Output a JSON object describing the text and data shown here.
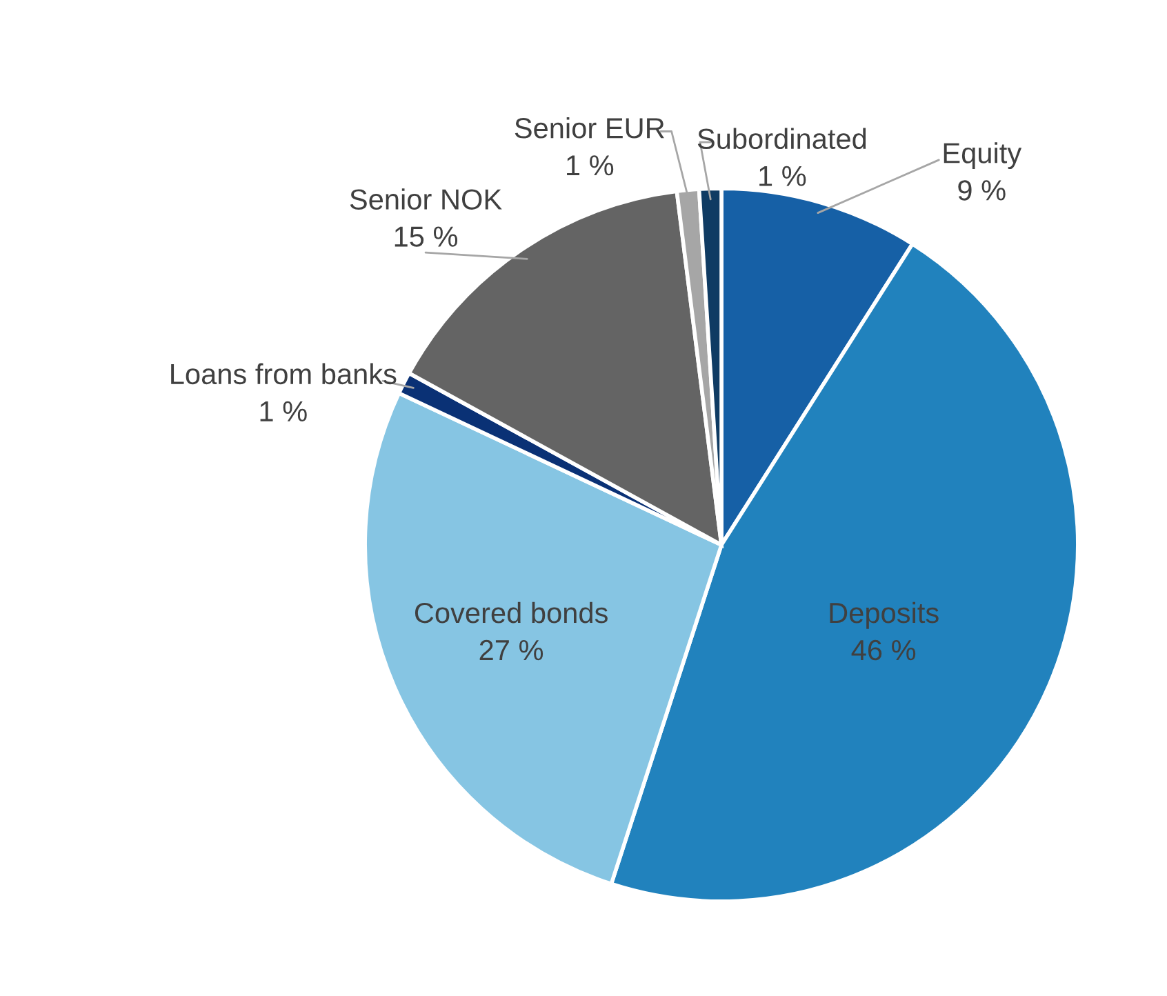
{
  "chart_data": {
    "type": "pie",
    "categories": [
      "Equity",
      "Deposits",
      "Covered bonds",
      "Loans from banks",
      "Senior NOK",
      "Senior EUR",
      "Subordinated"
    ],
    "values": [
      9,
      46,
      27,
      1,
      15,
      1,
      1
    ],
    "value_labels": [
      "9 %",
      "46 %",
      "27 %",
      "1 %",
      "15 %",
      "1 %",
      "1 %"
    ],
    "colors": [
      "#1660a6",
      "#2182bd",
      "#86c5e3",
      "#0a3175",
      "#646464",
      "#a6a6a6",
      "#0f3b63"
    ]
  }
}
